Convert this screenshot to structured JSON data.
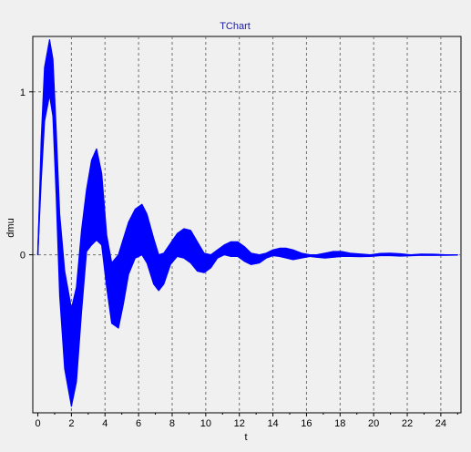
{
  "chart_data": {
    "type": "area",
    "title": "TChart",
    "xlabel": "t",
    "ylabel": "dmu",
    "xlim": [
      -0.3,
      25.2
    ],
    "ylim": [
      -0.97,
      1.34
    ],
    "xticks": [
      0,
      2,
      4,
      6,
      8,
      10,
      12,
      14,
      16,
      18,
      20,
      22,
      24
    ],
    "yticks": [
      0,
      1
    ],
    "grid": true,
    "legend": "none",
    "series": [
      {
        "color": "#0000ff",
        "description_values": "band between upper and lower envelope of a rapidly oscillating damped signal",
        "upper": {
          "x": [
            0,
            0.2,
            0.4,
            0.7,
            0.9,
            1.1,
            1.3,
            1.6,
            2.0,
            2.3,
            2.6,
            2.9,
            3.2,
            3.5,
            3.8,
            4.1,
            4.4,
            4.8,
            5.1,
            5.4,
            5.8,
            6.2,
            6.5,
            6.9,
            7.2,
            7.5,
            7.9,
            8.3,
            8.7,
            9.1,
            9.5,
            9.9,
            10.3,
            10.7,
            11.1,
            11.5,
            11.9,
            12.3,
            12.7,
            13.2,
            13.6,
            14.0,
            14.4,
            14.8,
            15.2,
            15.7,
            16.2,
            16.6,
            17.1,
            17.6,
            18.1,
            18.6,
            19.2,
            19.8,
            20.4,
            21.0,
            21.6,
            22.2,
            22.8,
            23.6,
            24.3,
            25.0
          ],
          "y": [
            0,
            0.7,
            1.15,
            1.32,
            1.2,
            0.75,
            0.25,
            -0.1,
            -0.33,
            -0.2,
            0.15,
            0.4,
            0.58,
            0.65,
            0.5,
            0.12,
            -0.05,
            0.0,
            0.1,
            0.2,
            0.28,
            0.31,
            0.25,
            0.1,
            0.0,
            0.01,
            0.07,
            0.13,
            0.16,
            0.15,
            0.08,
            0.01,
            0.0,
            0.03,
            0.06,
            0.08,
            0.08,
            0.05,
            0.01,
            0.0,
            0.01,
            0.03,
            0.04,
            0.04,
            0.03,
            0.01,
            0.0,
            0.0,
            0.01,
            0.02,
            0.02,
            0.01,
            0.005,
            0.0,
            0.008,
            0.01,
            0.006,
            0.0,
            0.004,
            0.003,
            0.0,
            0.0
          ]
        },
        "lower": {
          "x": [
            0,
            0.2,
            0.4,
            0.7,
            0.9,
            1.1,
            1.3,
            1.6,
            2.0,
            2.3,
            2.6,
            2.9,
            3.2,
            3.5,
            3.8,
            4.1,
            4.4,
            4.8,
            5.1,
            5.4,
            5.8,
            6.2,
            6.5,
            6.9,
            7.2,
            7.5,
            7.9,
            8.3,
            8.7,
            9.1,
            9.5,
            9.9,
            10.3,
            10.7,
            11.1,
            11.5,
            11.9,
            12.3,
            12.7,
            13.2,
            13.6,
            14.0,
            14.4,
            14.8,
            15.2,
            15.7,
            16.2,
            16.6,
            17.1,
            17.6,
            18.1,
            18.6,
            19.2,
            19.8,
            20.4,
            21.0,
            21.6,
            22.2,
            22.8,
            23.6,
            24.3,
            25.0
          ],
          "y": [
            0,
            0.45,
            0.82,
            0.98,
            0.85,
            0.35,
            -0.25,
            -0.7,
            -0.93,
            -0.78,
            -0.35,
            0.02,
            0.06,
            0.09,
            0.06,
            -0.2,
            -0.42,
            -0.45,
            -0.3,
            -0.12,
            -0.02,
            0.0,
            -0.05,
            -0.18,
            -0.22,
            -0.18,
            -0.06,
            -0.01,
            -0.02,
            -0.05,
            -0.1,
            -0.11,
            -0.08,
            -0.02,
            0.0,
            -0.01,
            -0.01,
            -0.04,
            -0.06,
            -0.05,
            -0.02,
            -0.005,
            -0.01,
            -0.02,
            -0.03,
            -0.02,
            -0.01,
            -0.015,
            -0.02,
            -0.015,
            -0.01,
            -0.01,
            -0.012,
            -0.01,
            -0.005,
            -0.005,
            -0.008,
            -0.006,
            -0.003,
            -0.004,
            -0.003,
            -0.002
          ]
        }
      }
    ]
  }
}
